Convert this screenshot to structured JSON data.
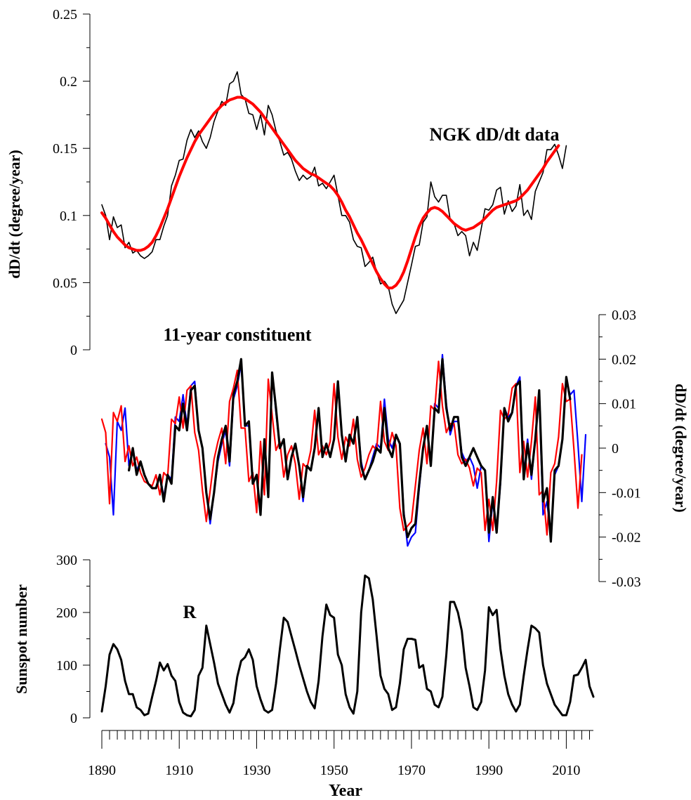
{
  "colors": {
    "black": "#000000",
    "red": "#ff0000",
    "blue": "#0000ff"
  },
  "x_axis": {
    "label": "Year",
    "range": [
      1890,
      2017
    ],
    "tick_labels": [
      "1890",
      "1910",
      "1930",
      "1950",
      "1970",
      "1990",
      "2010"
    ],
    "minor_step": 2
  },
  "chart_data": [
    {
      "type": "line",
      "annotation": "NGK dD/dt data",
      "ylabel": "dD/dt (degree/year)",
      "ylim": [
        0,
        0.25
      ],
      "ytick_labels": [
        "0",
        "0.05",
        "0.1",
        "0.15",
        "0.2",
        "0.25"
      ],
      "series": [
        {
          "color": "black",
          "x_start": 1890,
          "x_step": 1,
          "values": [
            0.108,
            0.1,
            0.082,
            0.099,
            0.091,
            0.093,
            0.076,
            0.08,
            0.072,
            0.074,
            0.07,
            0.068,
            0.07,
            0.073,
            0.082,
            0.082,
            0.092,
            0.1,
            0.122,
            0.13,
            0.141,
            0.142,
            0.156,
            0.164,
            0.158,
            0.163,
            0.155,
            0.15,
            0.158,
            0.17,
            0.178,
            0.185,
            0.182,
            0.198,
            0.2,
            0.207,
            0.19,
            0.187,
            0.176,
            0.175,
            0.164,
            0.175,
            0.16,
            0.182,
            0.175,
            0.163,
            0.155,
            0.145,
            0.147,
            0.142,
            0.133,
            0.126,
            0.13,
            0.127,
            0.129,
            0.136,
            0.122,
            0.124,
            0.12,
            0.125,
            0.13,
            0.115,
            0.1,
            0.1,
            0.095,
            0.082,
            0.077,
            0.076,
            0.062,
            0.065,
            0.069,
            0.058,
            0.049,
            0.051,
            0.047,
            0.034,
            0.027,
            0.032,
            0.037,
            0.05,
            0.063,
            0.077,
            0.078,
            0.095,
            0.099,
            0.125,
            0.114,
            0.11,
            0.115,
            0.115,
            0.097,
            0.094,
            0.085,
            0.088,
            0.085,
            0.07,
            0.08,
            0.074,
            0.09,
            0.105,
            0.104,
            0.108,
            0.119,
            0.121,
            0.101,
            0.111,
            0.103,
            0.107,
            0.123,
            0.1,
            0.104,
            0.097,
            0.118,
            0.125,
            0.132,
            0.149,
            0.149,
            0.153,
            0.145,
            0.135,
            0.152
          ]
        },
        {
          "color": "red",
          "x_start": 1890,
          "x_step": 1,
          "values": [
            0.102,
            0.098,
            0.093,
            0.088,
            0.084,
            0.081,
            0.078,
            0.076,
            0.075,
            0.074,
            0.074,
            0.075,
            0.077,
            0.08,
            0.085,
            0.091,
            0.098,
            0.105,
            0.113,
            0.121,
            0.129,
            0.136,
            0.143,
            0.149,
            0.155,
            0.16,
            0.164,
            0.168,
            0.172,
            0.176,
            0.179,
            0.182,
            0.184,
            0.186,
            0.187,
            0.188,
            0.188,
            0.187,
            0.185,
            0.183,
            0.18,
            0.177,
            0.173,
            0.169,
            0.165,
            0.161,
            0.157,
            0.153,
            0.149,
            0.145,
            0.141,
            0.138,
            0.135,
            0.133,
            0.131,
            0.13,
            0.128,
            0.126,
            0.124,
            0.122,
            0.119,
            0.115,
            0.11,
            0.104,
            0.099,
            0.093,
            0.087,
            0.082,
            0.076,
            0.07,
            0.064,
            0.058,
            0.053,
            0.049,
            0.046,
            0.046,
            0.048,
            0.052,
            0.058,
            0.066,
            0.075,
            0.084,
            0.092,
            0.098,
            0.102,
            0.105,
            0.106,
            0.105,
            0.103,
            0.1,
            0.097,
            0.094,
            0.092,
            0.09,
            0.089,
            0.09,
            0.091,
            0.093,
            0.095,
            0.098,
            0.101,
            0.104,
            0.106,
            0.107,
            0.108,
            0.109,
            0.11,
            0.111,
            0.113,
            0.116,
            0.119,
            0.123,
            0.127,
            0.131,
            0.135,
            0.14,
            0.144,
            0.148,
            0.152
          ]
        }
      ]
    },
    {
      "type": "line",
      "annotation": "11-year constituent",
      "ylabel": "dD/dt (degree/year)",
      "ylim": [
        -0.03,
        0.03
      ],
      "ytick_labels": [
        "-0.03",
        "-0.02",
        "-0.01",
        "0",
        "0.01",
        "0.02",
        "0.03"
      ],
      "series": [
        {
          "color": "blue",
          "x_start": 1891,
          "x_step": 1,
          "values": [
            0.001,
            -0.002,
            -0.015,
            0.006,
            0.004,
            0.009,
            -0.004,
            0,
            -0.005,
            -0.003,
            -0.006,
            -0.008,
            -0.009,
            -0.009,
            -0.006,
            -0.011,
            -0.006,
            -0.007,
            0.007,
            0.006,
            0.012,
            0.005,
            0.014,
            0.015,
            0.004,
            0,
            -0.01,
            -0.017,
            -0.01,
            -0.003,
            0.001,
            0.004,
            -0.004,
            0.011,
            0.014,
            0.019,
            0.005,
            0.005,
            -0.008,
            -0.006,
            -0.015,
            0.002,
            -0.011,
            0.017,
            0.008,
            0,
            0.002,
            -0.007,
            -0.002,
            0.001,
            -0.004,
            -0.012,
            -0.004,
            -0.005,
            0,
            0.009,
            -0.002,
            0.001,
            -0.002,
            0.002,
            0.015,
            0.003,
            -0.003,
            0.003,
            0.001,
            0.007,
            -0.003,
            -0.007,
            -0.005,
            -0.002,
            0.001,
            0,
            0.011,
            0.002,
            0,
            0.003,
            0.001,
            -0.014,
            -0.022,
            -0.02,
            -0.019,
            -0.009,
            0,
            0.005,
            -0.004,
            0.01,
            0.009,
            0.021,
            0.01,
            0.003,
            0.006,
            0.006,
            -0.001,
            -0.003,
            -0.002,
            -0.004,
            -0.009,
            -0.004,
            -0.005,
            -0.021,
            -0.012,
            -0.019,
            -0.008,
            0.009,
            0.007,
            0.008,
            0.014,
            0.016,
            -0.006,
            0.002,
            -0.007,
            0.002,
            0.012,
            -0.015,
            -0.012,
            -0.02,
            -0.006,
            -0.004,
            0.002,
            0.015,
            0.012,
            0.013,
            0.001,
            -0.012,
            0.003
          ]
        },
        {
          "color": "red",
          "x_start": 1890,
          "x_step": 1,
          "values": [
            0.0065,
            0.0035,
            -0.0125,
            0.008,
            0.006,
            0.0095,
            -0.003,
            0.0005,
            -0.004,
            -0.002,
            -0.0055,
            -0.0075,
            -0.008,
            -0.0085,
            -0.006,
            -0.0105,
            -0.0055,
            -0.0065,
            0.0065,
            0.0055,
            0.0115,
            0.0045,
            0.013,
            0.014,
            0.0035,
            -0.0005,
            -0.0095,
            -0.0165,
            -0.0095,
            -0.0025,
            0.0015,
            0.0045,
            -0.0035,
            0.0105,
            0.0135,
            0.0175,
            0.0045,
            0.0045,
            -0.0075,
            -0.0055,
            -0.0145,
            0.0015,
            -0.0105,
            0.0155,
            0.0075,
            -0.0005,
            0.0015,
            -0.0065,
            -0.0015,
            0.0005,
            -0.0035,
            -0.0115,
            -0.0035,
            -0.0045,
            -0.0005,
            0.0085,
            -0.0015,
            0.0005,
            -0.0015,
            0.0015,
            0.0145,
            0.0025,
            -0.0025,
            0.0025,
            0.0005,
            0.0065,
            -0.0025,
            -0.0065,
            -0.0045,
            -0.0015,
            0.0005,
            -0.0005,
            0.0105,
            0.0015,
            -0.0005,
            0.0035,
            0.0005,
            -0.0135,
            -0.0185,
            -0.0175,
            -0.0165,
            -0.0085,
            -0.0005,
            0.0045,
            -0.0035,
            0.0095,
            0.0085,
            0.0195,
            0.0095,
            0.0035,
            0.0055,
            0.0055,
            -0.0015,
            -0.0035,
            -0.0025,
            -0.0045,
            -0.0085,
            -0.0045,
            -0.0055,
            -0.0185,
            -0.0115,
            -0.0185,
            -0.0075,
            0.0085,
            0.0065,
            0.0075,
            0.0135,
            0.0145,
            -0.0055,
            0.0015,
            -0.0065,
            0.0015,
            0.0115,
            -0.0105,
            -0.0095,
            -0.0195,
            -0.0055,
            -0.0035,
            0.0025,
            0.0145,
            0.0105,
            0.011,
            -0.0005,
            -0.0135,
            -0.0015
          ]
        },
        {
          "color": "black",
          "x_start": 1891,
          "x_step": 1,
          "values": [
            null,
            null,
            null,
            null,
            null,
            null,
            -0.005,
            0,
            -0.006,
            -0.003,
            -0.006,
            -0.008,
            -0.009,
            -0.009,
            -0.006,
            -0.012,
            -0.006,
            -0.008,
            0.005,
            0.004,
            0.01,
            0.004,
            0.013,
            0.014,
            0.004,
            0,
            -0.01,
            -0.016,
            -0.01,
            -0.002,
            0.002,
            0.005,
            -0.003,
            0.012,
            0.015,
            0.02,
            0.005,
            0.006,
            -0.008,
            -0.006,
            -0.015,
            0.002,
            -0.011,
            0.017,
            0.009,
            0,
            0.002,
            -0.007,
            -0.002,
            0.001,
            -0.004,
            -0.011,
            -0.004,
            -0.005,
            0,
            0.009,
            -0.002,
            0.001,
            -0.002,
            0.002,
            0.015,
            0.003,
            -0.003,
            0.003,
            0.001,
            0.007,
            -0.004,
            -0.007,
            -0.005,
            -0.003,
            0,
            -0.001,
            0.009,
            0,
            -0.002,
            0.003,
            0.001,
            -0.015,
            -0.02,
            -0.018,
            -0.017,
            -0.008,
            0,
            0.005,
            -0.004,
            0.009,
            0.008,
            0.02,
            0.009,
            0.004,
            0.007,
            0.007,
            -0.002,
            -0.004,
            -0.002,
            0,
            -0.002,
            -0.004,
            -0.005,
            -0.019,
            -0.011,
            -0.019,
            -0.007,
            0.009,
            0.006,
            0.008,
            0.014,
            0.015,
            -0.007,
            0.001,
            -0.006,
            0.002,
            0.013,
            -0.012,
            -0.009,
            -0.021,
            -0.005,
            -0.004,
            0.002,
            0.016,
            0.011,
            null,
            null,
            null,
            null
          ]
        }
      ]
    },
    {
      "type": "line",
      "annotation": "R",
      "ylabel": "Sunspot number",
      "ylim": [
        0,
        300
      ],
      "ytick_labels": [
        "0",
        "100",
        "200",
        "300"
      ],
      "series": [
        {
          "color": "black",
          "x_start": 1890,
          "x_step": 1,
          "values": [
            12,
            60,
            120,
            140,
            130,
            110,
            70,
            45,
            45,
            20,
            15,
            5,
            8,
            40,
            70,
            105,
            90,
            102,
            80,
            70,
            30,
            10,
            5,
            3,
            15,
            80,
            95,
            175,
            140,
            105,
            65,
            45,
            25,
            10,
            28,
            78,
            108,
            115,
            130,
            110,
            60,
            35,
            15,
            10,
            15,
            65,
            130,
            190,
            182,
            155,
            128,
            100,
            75,
            50,
            30,
            18,
            70,
            155,
            215,
            195,
            190,
            120,
            100,
            45,
            20,
            8,
            50,
            200,
            270,
            265,
            225,
            155,
            80,
            55,
            45,
            15,
            20,
            65,
            130,
            150,
            150,
            148,
            95,
            100,
            55,
            50,
            25,
            20,
            40,
            120,
            220,
            220,
            200,
            165,
            95,
            60,
            20,
            15,
            30,
            90,
            210,
            195,
            205,
            130,
            80,
            45,
            25,
            12,
            25,
            80,
            130,
            175,
            170,
            162,
            100,
            65,
            45,
            25,
            15,
            5,
            5,
            30,
            80,
            82,
            95,
            110,
            60,
            40
          ]
        }
      ]
    }
  ]
}
